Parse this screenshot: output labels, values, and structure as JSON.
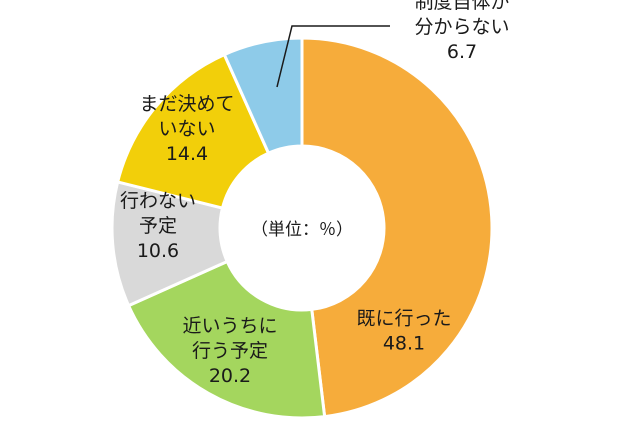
{
  "chart_data": {
    "type": "pie",
    "donut": true,
    "unit_label": "（単位：％）",
    "start_angle_deg": 0,
    "direction": "clockwise",
    "slices": [
      {
        "label_lines": [
          "既に行った"
        ],
        "value": 48.1,
        "value_text": "48.1",
        "color": "#f6ac3b"
      },
      {
        "label_lines": [
          "近いうちに",
          "行う予定"
        ],
        "value": 20.2,
        "value_text": "20.2",
        "color": "#a4d65e"
      },
      {
        "label_lines": [
          "行わない",
          "予定"
        ],
        "value": 10.6,
        "value_text": "10.6",
        "color": "#d9d9d9"
      },
      {
        "label_lines": [
          "まだ決めて",
          "いない"
        ],
        "value": 14.4,
        "value_text": "14.4",
        "color": "#f2cf0a"
      },
      {
        "label_lines": [
          "制度自体が",
          "分からない"
        ],
        "value": 6.7,
        "value_text": "6.7",
        "color": "#8ecbe9"
      }
    ]
  }
}
